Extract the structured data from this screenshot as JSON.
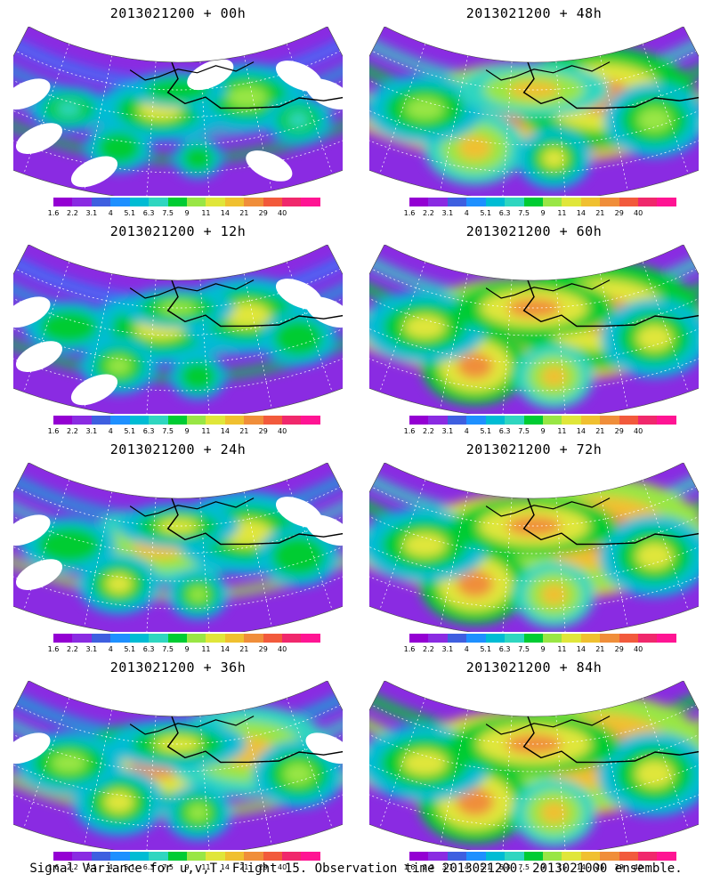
{
  "caption": "Signal Variance for u,v,T. Flight 15. Observation time 2013021200. 2013021000 ensemble.",
  "colorbar": {
    "colors": [
      "#9400d3",
      "#8a2be2",
      "#3e5fe0",
      "#1e90ff",
      "#00bcd4",
      "#2fd6c0",
      "#00cc33",
      "#99e645",
      "#e0e63a",
      "#f0c030",
      "#f08e3a",
      "#f25a3c",
      "#f0286c",
      "#ff1493"
    ],
    "ticks": [
      "1.6",
      "2.2",
      "3.1",
      "4",
      "5.1",
      "6.3",
      "7.5",
      "9",
      "11",
      "14",
      "21",
      "29",
      "40"
    ]
  },
  "panels": [
    {
      "title": "2013021200 + 00h",
      "intensity": 0.15
    },
    {
      "title": "2013021200 + 48h",
      "intensity": 0.7
    },
    {
      "title": "2013021200 + 12h",
      "intensity": 0.3
    },
    {
      "title": "2013021200 + 60h",
      "intensity": 0.8
    },
    {
      "title": "2013021200 + 24h",
      "intensity": 0.4
    },
    {
      "title": "2013021200 + 72h",
      "intensity": 0.85
    },
    {
      "title": "2013021200 + 36h",
      "intensity": 0.55
    },
    {
      "title": "2013021200 + 84h",
      "intensity": 0.9
    }
  ]
}
